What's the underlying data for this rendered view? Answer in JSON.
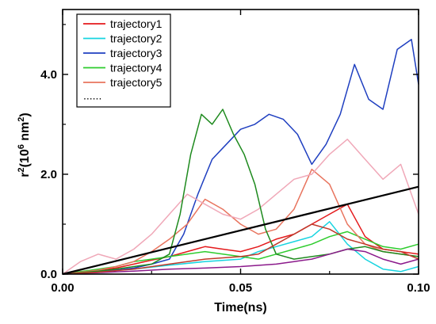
{
  "chart_data": {
    "type": "line",
    "xlabel": "Time(ns)",
    "ylabel": "r",
    "ylabel_sup": "2",
    "ylabel_mid": "(10",
    "ylabel_sup2": "6",
    "ylabel_end": " nm",
    "ylabel_sup3": "2",
    "ylabel_close": ")",
    "xlim": [
      0,
      0.1
    ],
    "ylim": [
      0,
      5.3
    ],
    "xticks": [
      0,
      0.05,
      0.1
    ],
    "xtick_labels": [
      "0.00",
      "0.05",
      "0.10"
    ],
    "yticks": [
      0,
      2.0,
      4.0
    ],
    "ytick_labels": [
      "0.0",
      "2.0",
      "4.0"
    ],
    "grid": false,
    "legend_placement": "top-left",
    "legend_last_label": "......",
    "series": [
      {
        "name": "trajectory1",
        "color": "#e41a1c",
        "x": [
          0,
          0.005,
          0.01,
          0.015,
          0.02,
          0.025,
          0.03,
          0.035,
          0.04,
          0.045,
          0.05,
          0.055,
          0.06,
          0.065,
          0.07,
          0.075,
          0.08,
          0.085,
          0.09,
          0.095,
          0.1
        ],
        "y": [
          0,
          0.03,
          0.08,
          0.12,
          0.2,
          0.28,
          0.35,
          0.45,
          0.55,
          0.5,
          0.45,
          0.55,
          0.7,
          0.8,
          1.0,
          1.2,
          1.4,
          0.75,
          0.5,
          0.45,
          0.4
        ]
      },
      {
        "name": "trajectory2",
        "color": "#17d4e0",
        "x": [
          0,
          0.01,
          0.02,
          0.03,
          0.04,
          0.05,
          0.055,
          0.06,
          0.065,
          0.07,
          0.075,
          0.08,
          0.085,
          0.09,
          0.095,
          0.1
        ],
        "y": [
          0,
          0.05,
          0.1,
          0.18,
          0.25,
          0.3,
          0.45,
          0.55,
          0.65,
          0.75,
          1.05,
          0.6,
          0.3,
          0.1,
          0.05,
          0.15
        ]
      },
      {
        "name": "trajectory3",
        "color": "#1f3fc0",
        "x": [
          0,
          0.005,
          0.01,
          0.015,
          0.02,
          0.025,
          0.03,
          0.034,
          0.038,
          0.042,
          0.046,
          0.05,
          0.054,
          0.058,
          0.062,
          0.066,
          0.07,
          0.074,
          0.078,
          0.082,
          0.086,
          0.09,
          0.094,
          0.098,
          0.1
        ],
        "y": [
          0,
          0.02,
          0.05,
          0.08,
          0.12,
          0.2,
          0.3,
          0.8,
          1.6,
          2.3,
          2.6,
          2.9,
          3.0,
          3.2,
          3.1,
          2.8,
          2.2,
          2.6,
          3.2,
          4.2,
          3.5,
          3.3,
          4.5,
          4.7,
          3.8
        ]
      },
      {
        "name": "trajectory4",
        "color": "#2ecc2e",
        "x": [
          0,
          0.005,
          0.01,
          0.015,
          0.02,
          0.025,
          0.03,
          0.035,
          0.04,
          0.045,
          0.05,
          0.055,
          0.06,
          0.065,
          0.07,
          0.075,
          0.08,
          0.085,
          0.09,
          0.095,
          0.1
        ],
        "y": [
          0,
          0.05,
          0.1,
          0.15,
          0.25,
          0.3,
          0.35,
          0.4,
          0.45,
          0.4,
          0.35,
          0.3,
          0.4,
          0.5,
          0.6,
          0.75,
          0.85,
          0.7,
          0.55,
          0.5,
          0.6
        ]
      },
      {
        "name": "trajectory5",
        "color": "#e8745e",
        "x": [
          0,
          0.005,
          0.01,
          0.015,
          0.02,
          0.025,
          0.03,
          0.035,
          0.04,
          0.045,
          0.05,
          0.055,
          0.06,
          0.065,
          0.07,
          0.075,
          0.08,
          0.085,
          0.09,
          0.095,
          0.1
        ],
        "y": [
          0,
          0.04,
          0.08,
          0.15,
          0.25,
          0.45,
          0.7,
          1.0,
          1.5,
          1.3,
          1.0,
          0.8,
          0.9,
          1.3,
          2.1,
          1.8,
          1.0,
          0.6,
          0.45,
          0.4,
          0.35
        ]
      },
      {
        "color": "#f0a8b8",
        "x": [
          0,
          0.005,
          0.01,
          0.015,
          0.02,
          0.025,
          0.03,
          0.035,
          0.04,
          0.045,
          0.05,
          0.055,
          0.06,
          0.065,
          0.07,
          0.075,
          0.08,
          0.085,
          0.09,
          0.095,
          0.1
        ],
        "y": [
          0,
          0.25,
          0.4,
          0.3,
          0.5,
          0.8,
          1.2,
          1.6,
          1.4,
          1.2,
          1.1,
          1.3,
          1.6,
          1.9,
          2.0,
          2.4,
          2.7,
          2.3,
          1.9,
          2.2,
          1.2
        ]
      },
      {
        "color": "#1e8a1e",
        "x": [
          0,
          0.005,
          0.01,
          0.015,
          0.02,
          0.025,
          0.03,
          0.033,
          0.036,
          0.039,
          0.042,
          0.045,
          0.048,
          0.051,
          0.054,
          0.057,
          0.06,
          0.065,
          0.07,
          0.075,
          0.08,
          0.085,
          0.09,
          0.095,
          0.1
        ],
        "y": [
          0,
          0.03,
          0.06,
          0.1,
          0.15,
          0.2,
          0.4,
          1.2,
          2.4,
          3.2,
          3.0,
          3.3,
          2.8,
          2.4,
          1.8,
          0.9,
          0.4,
          0.3,
          0.35,
          0.4,
          0.5,
          0.55,
          0.45,
          0.4,
          0.35
        ]
      },
      {
        "color": "#8b1a8b",
        "x": [
          0,
          0.01,
          0.02,
          0.03,
          0.04,
          0.05,
          0.06,
          0.065,
          0.07,
          0.075,
          0.08,
          0.085,
          0.09,
          0.095,
          0.1
        ],
        "y": [
          0,
          0.03,
          0.06,
          0.1,
          0.12,
          0.15,
          0.2,
          0.25,
          0.3,
          0.4,
          0.5,
          0.45,
          0.3,
          0.2,
          0.3
        ]
      },
      {
        "color": "#c0392b",
        "x": [
          0,
          0.01,
          0.02,
          0.03,
          0.04,
          0.05,
          0.055,
          0.06,
          0.065,
          0.07,
          0.075,
          0.08,
          0.085,
          0.09,
          0.095,
          0.1
        ],
        "y": [
          0,
          0.04,
          0.1,
          0.2,
          0.3,
          0.35,
          0.4,
          0.6,
          0.8,
          1.0,
          0.9,
          0.7,
          0.6,
          0.5,
          0.45,
          0.3
        ]
      },
      {
        "color": "#000000",
        "style": "thick",
        "x": [
          0,
          0.1
        ],
        "y": [
          0,
          1.75
        ]
      }
    ]
  }
}
